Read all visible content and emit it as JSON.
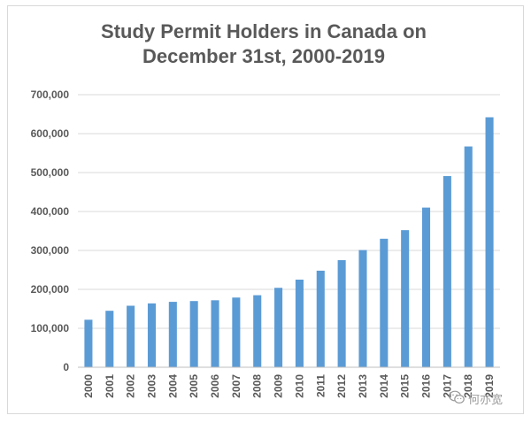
{
  "chart_data": {
    "type": "bar",
    "title_lines": [
      "Study Permit Holders in Canada on",
      "December 31st, 2000-2019"
    ],
    "categories": [
      "2000",
      "2001",
      "2002",
      "2003",
      "2004",
      "2005",
      "2006",
      "2007",
      "2008",
      "2009",
      "2010",
      "2011",
      "2012",
      "2013",
      "2014",
      "2015",
      "2016",
      "2017",
      "2018",
      "2019"
    ],
    "values": [
      122000,
      145000,
      158000,
      164000,
      168000,
      170000,
      172000,
      179000,
      185000,
      204000,
      225000,
      248000,
      275000,
      301000,
      330000,
      352000,
      410000,
      491000,
      567000,
      642000
    ],
    "ylim": [
      0,
      700000
    ],
    "yticks": [
      0,
      100000,
      200000,
      300000,
      400000,
      500000,
      600000,
      700000
    ],
    "ytick_labels": [
      "0",
      "100,000",
      "200,000",
      "300,000",
      "400,000",
      "500,000",
      "600,000",
      "700,000"
    ],
    "bar_color": "#5b9bd5",
    "grid": true
  },
  "watermark": {
    "text": "何亦宽",
    "icon": "wechat-icon",
    "color": "#9a9a9a"
  }
}
